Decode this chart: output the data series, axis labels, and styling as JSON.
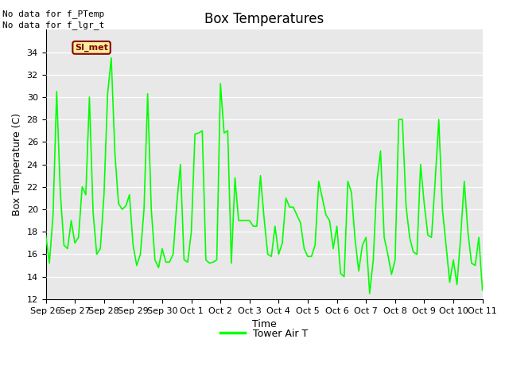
{
  "title": "Box Temperatures",
  "xlabel": "Time",
  "ylabel": "Box Temperature (C)",
  "ylim": [
    12,
    36
  ],
  "yticks": [
    12,
    14,
    16,
    18,
    20,
    22,
    24,
    26,
    28,
    30,
    32,
    34
  ],
  "line_color": "#00FF00",
  "line_width": 1.2,
  "bg_color": "#E8E8E8",
  "fig_bg_color": "#FFFFFF",
  "legend_label": "Tower Air T",
  "annotation_text_1": "No data for f_PTemp",
  "annotation_text_2": "No data for f_lgr_t",
  "box_label": "SI_met",
  "title_fontsize": 12,
  "axis_fontsize": 9,
  "tick_fontsize": 8,
  "x_dates": [
    "Sep 26",
    "Sep 27",
    "Sep 28",
    "Sep 29",
    "Sep 30",
    "Oct 1",
    "Oct 2",
    "Oct 3",
    "Oct 4",
    "Oct 5",
    "Oct 6",
    "Oct 7",
    "Oct 8",
    "Oct 9",
    "Oct 10",
    "Oct 11"
  ],
  "temp_values": [
    17.7,
    15.2,
    19.5,
    30.5,
    21.5,
    16.8,
    16.5,
    19.0,
    17.0,
    17.5,
    22.0,
    21.3,
    30.0,
    19.8,
    16.0,
    16.5,
    21.3,
    30.3,
    33.5,
    25.0,
    20.5,
    20.0,
    20.3,
    21.3,
    16.8,
    15.0,
    16.0,
    20.0,
    30.3,
    20.0,
    15.5,
    14.8,
    16.5,
    15.3,
    15.3,
    16.0,
    20.5,
    24.0,
    15.5,
    15.3,
    18.0,
    26.7,
    26.8,
    27.0,
    15.5,
    15.2,
    15.3,
    15.5,
    31.2,
    26.8,
    27.0,
    15.2,
    22.8,
    19.0,
    19.0,
    19.0,
    19.0,
    18.5,
    18.5,
    23.0,
    19.2,
    16.0,
    15.8,
    18.5,
    16.0,
    17.0,
    21.0,
    20.2,
    20.2,
    19.5,
    18.8,
    16.5,
    15.8,
    15.8,
    16.8,
    22.5,
    21.0,
    19.5,
    19.0,
    16.5,
    18.5,
    14.3,
    14.0,
    22.5,
    21.5,
    17.3,
    14.5,
    16.8,
    17.5,
    12.5,
    15.5,
    22.5,
    25.2,
    17.5,
    16.0,
    14.2,
    15.5,
    28.0,
    28.0,
    20.3,
    17.5,
    16.2,
    16.0,
    24.0,
    20.5,
    17.7,
    17.5,
    22.5,
    28.0,
    20.0,
    16.8,
    13.5,
    15.5,
    13.3,
    17.5,
    22.5,
    18.0,
    15.2,
    15.0,
    17.5,
    12.8
  ]
}
